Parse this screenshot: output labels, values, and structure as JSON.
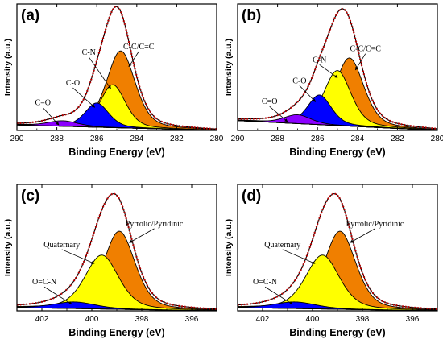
{
  "colors": {
    "orange": "#F07F00",
    "yellow": "#FFFF00",
    "blue": "#0000FF",
    "purple": "#8B00FF",
    "envelope": "#C00000",
    "outline": "#000000"
  },
  "chart_data": [
    {
      "type": "area",
      "panel_label": "(a)",
      "xlabel": "Binding Energy (eV)",
      "ylabel": "Intensity (a.u.)",
      "xlim": [
        290,
        280
      ],
      "ylim": [
        0,
        1.15
      ],
      "reversed_x": true,
      "x_ticks": [
        "290",
        "288",
        "286",
        "284",
        "282",
        "280"
      ],
      "tick_values": [
        290,
        288,
        286,
        284,
        282,
        280
      ],
      "y_ticks": false,
      "series": [
        {
          "name": "C-C/C=C",
          "center": 284.8,
          "height": 0.7,
          "width": 0.85,
          "color": "orange",
          "label_at": [
            283.9,
            0.74
          ],
          "arrow_to": [
            284.4,
            0.58
          ]
        },
        {
          "name": "C-N",
          "center": 285.2,
          "height": 0.39,
          "width": 0.75,
          "color": "yellow",
          "label_at": [
            286.4,
            0.69
          ],
          "arrow_to": [
            285.3,
            0.38
          ]
        },
        {
          "name": "C-O",
          "center": 286.0,
          "height": 0.22,
          "width": 0.7,
          "color": "blue",
          "label_at": [
            287.2,
            0.41
          ],
          "arrow_to": [
            286.1,
            0.21
          ]
        },
        {
          "name": "C=O",
          "center": 287.7,
          "height": 0.05,
          "width": 0.9,
          "color": "purple",
          "label_at": [
            288.7,
            0.23
          ],
          "arrow_to": [
            287.9,
            0.05
          ]
        }
      ],
      "baseline": {
        "left": 0.05,
        "right": 0.0
      }
    },
    {
      "type": "area",
      "panel_label": "(b)",
      "xlabel": "Binding Energy (eV)",
      "ylabel": "Intensity (a.u.)",
      "xlim": [
        290,
        280
      ],
      "ylim": [
        0,
        1.15
      ],
      "reversed_x": true,
      "x_ticks": [
        "290",
        "288",
        "286",
        "284",
        "282",
        "280"
      ],
      "tick_values": [
        290,
        288,
        286,
        284,
        282,
        280
      ],
      "y_ticks": false,
      "series": [
        {
          "name": "C-C/C=C",
          "center": 284.4,
          "height": 0.62,
          "width": 0.85,
          "color": "orange",
          "label_at": [
            283.6,
            0.72
          ],
          "arrow_to": [
            284.1,
            0.55
          ]
        },
        {
          "name": "C-N",
          "center": 285.0,
          "height": 0.5,
          "width": 0.8,
          "color": "yellow",
          "label_at": [
            285.9,
            0.62
          ],
          "arrow_to": [
            285.0,
            0.48
          ]
        },
        {
          "name": "C-O",
          "center": 285.9,
          "height": 0.27,
          "width": 0.7,
          "color": "blue",
          "label_at": [
            286.9,
            0.43
          ],
          "arrow_to": [
            286.1,
            0.26
          ]
        },
        {
          "name": "C=O",
          "center": 287.0,
          "height": 0.08,
          "width": 0.8,
          "color": "purple",
          "label_at": [
            288.4,
            0.24
          ],
          "arrow_to": [
            287.5,
            0.08
          ]
        }
      ],
      "baseline": {
        "left": 0.09,
        "right": 0.0
      }
    },
    {
      "type": "area",
      "panel_label": "(c)",
      "xlabel": "Binding Energy (eV)",
      "ylabel": "Intensity (a.u.)",
      "xlim": [
        403,
        395
      ],
      "ylim": [
        0,
        1.15
      ],
      "reversed_x": true,
      "x_ticks": [
        "402",
        "400",
        "398",
        "396"
      ],
      "tick_values": [
        402,
        400,
        398,
        396
      ],
      "y_ticks": false,
      "series": [
        {
          "name": "Pyrrolic/Pyridinic",
          "center": 398.9,
          "height": 0.71,
          "width": 0.75,
          "color": "orange",
          "label_at": [
            397.5,
            0.77
          ],
          "arrow_to": [
            398.5,
            0.62
          ]
        },
        {
          "name": "Quaternary",
          "center": 399.6,
          "height": 0.49,
          "width": 0.8,
          "color": "yellow",
          "label_at": [
            401.2,
            0.58
          ],
          "arrow_to": [
            399.9,
            0.43
          ]
        },
        {
          "name": "O=C-N",
          "center": 400.7,
          "height": 0.06,
          "width": 1.0,
          "color": "blue",
          "label_at": [
            401.9,
            0.24
          ],
          "arrow_to": [
            400.8,
            0.06
          ]
        }
      ],
      "baseline": {
        "left": 0.03,
        "right": 0.0
      }
    },
    {
      "type": "area",
      "panel_label": "(d)",
      "xlabel": "Binding Energy (eV)",
      "ylabel": "Intensity (a.u.)",
      "xlim": [
        403,
        395
      ],
      "ylim": [
        0,
        1.15
      ],
      "reversed_x": true,
      "x_ticks": [
        "402",
        "400",
        "398",
        "396"
      ],
      "tick_values": [
        402,
        400,
        398,
        396
      ],
      "y_ticks": false,
      "series": [
        {
          "name": "Pyrrolic/Pyridinic",
          "center": 398.9,
          "height": 0.71,
          "width": 0.75,
          "color": "orange",
          "label_at": [
            397.5,
            0.77
          ],
          "arrow_to": [
            398.5,
            0.62
          ]
        },
        {
          "name": "Quaternary",
          "center": 399.6,
          "height": 0.49,
          "width": 0.8,
          "color": "yellow",
          "label_at": [
            401.2,
            0.58
          ],
          "arrow_to": [
            399.9,
            0.43
          ]
        },
        {
          "name": "O=C-N",
          "center": 400.7,
          "height": 0.06,
          "width": 1.0,
          "color": "blue",
          "label_at": [
            401.9,
            0.24
          ],
          "arrow_to": [
            400.8,
            0.06
          ]
        }
      ],
      "baseline": {
        "left": 0.03,
        "right": 0.0
      }
    }
  ]
}
